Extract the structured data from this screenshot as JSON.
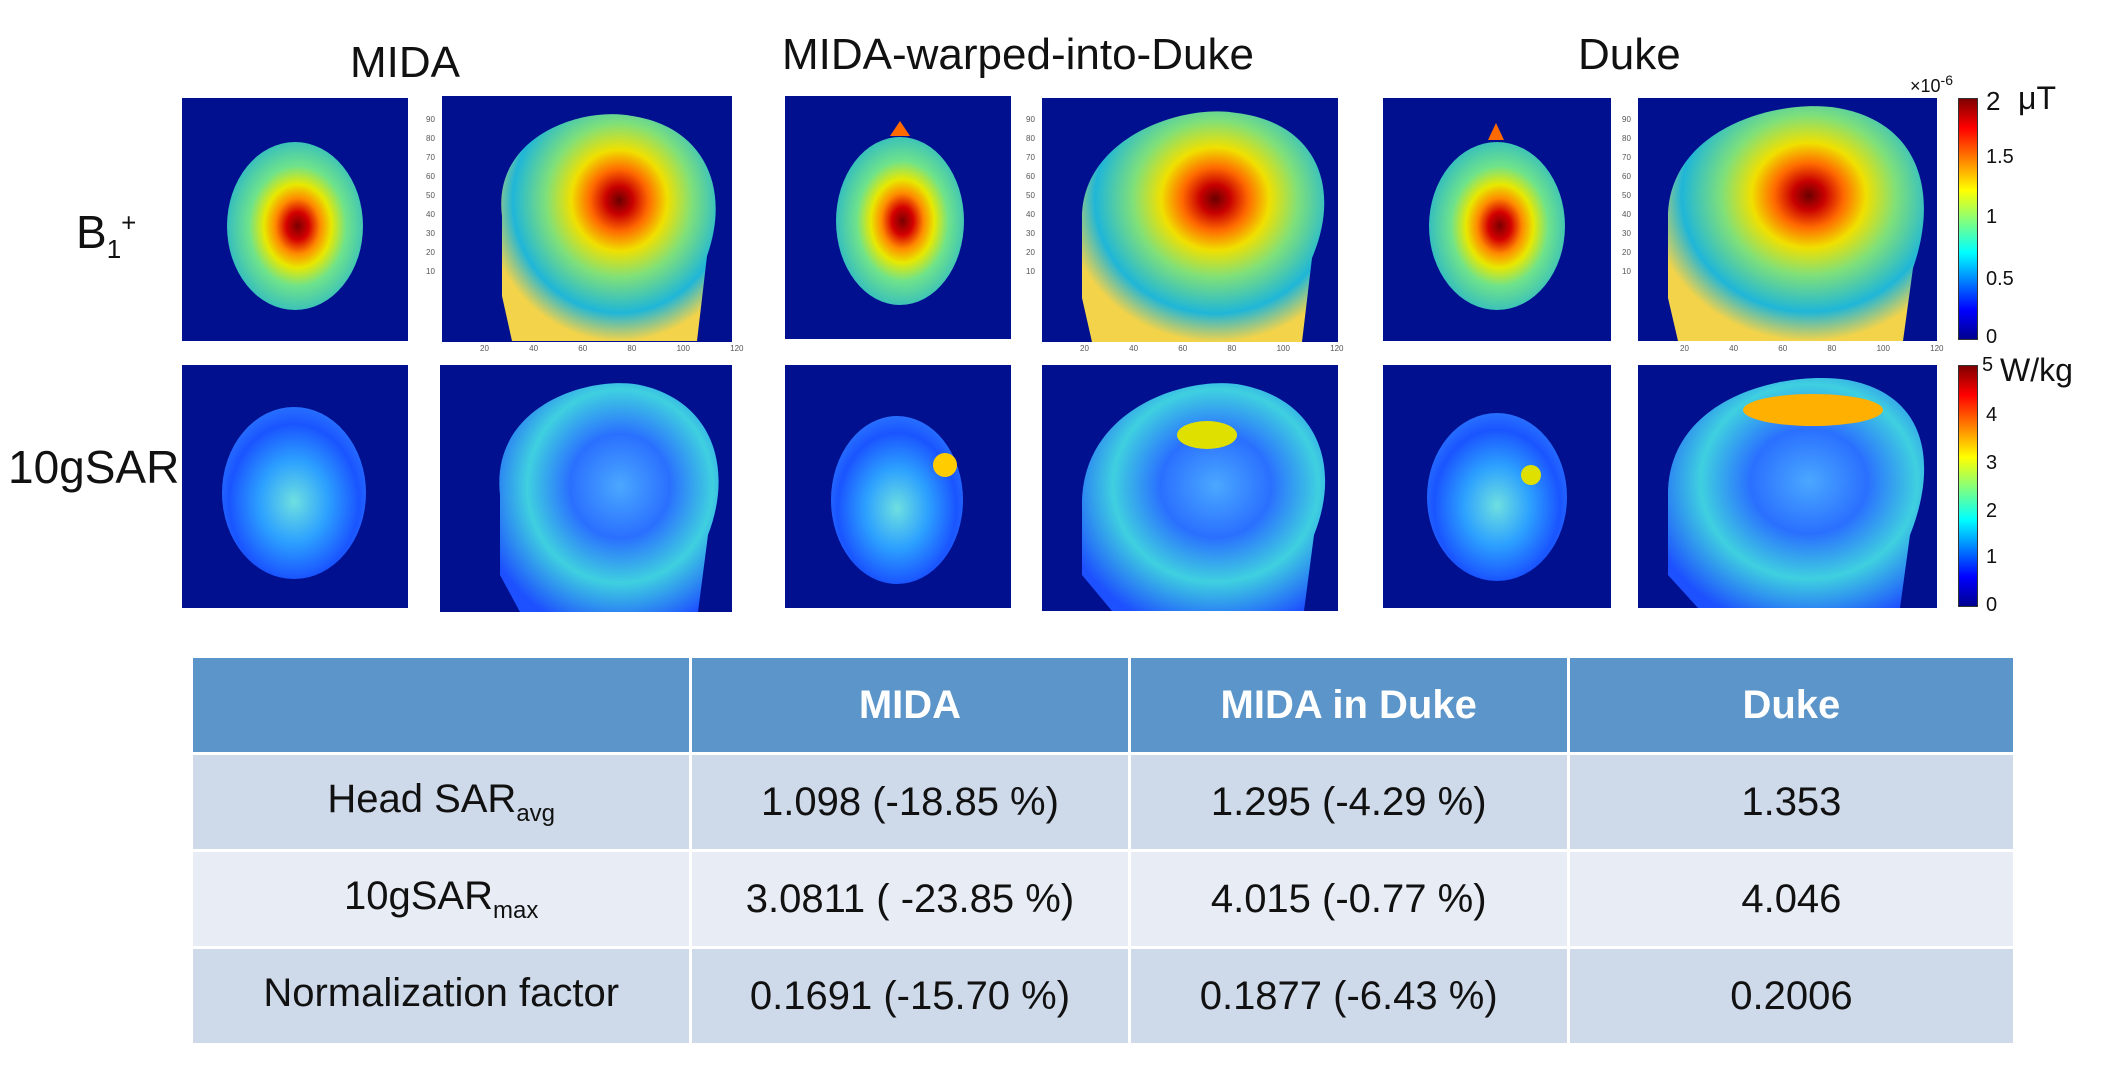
{
  "columns": {
    "mida": "MIDA",
    "warped": "MIDA-warped-into-Duke",
    "duke": "Duke"
  },
  "rows": {
    "b1_base": "B",
    "b1_sub": "1",
    "b1_sup": "+",
    "sar": "10gSAR"
  },
  "colorbar_b1": {
    "exponent": "×10",
    "exponent_power": "-6",
    "unit": "μT",
    "ticks": [
      "2",
      "1.5",
      "1",
      "0.5",
      "0"
    ]
  },
  "colorbar_sar": {
    "unit": "W/kg",
    "ticks": [
      "5",
      "4",
      "3",
      "2",
      "1",
      "0"
    ]
  },
  "axis_ticks_y": [
    "90",
    "80",
    "70",
    "60",
    "50",
    "40",
    "30",
    "20",
    "10"
  ],
  "axis_ticks_x": [
    "20",
    "40",
    "60",
    "80",
    "100",
    "120"
  ],
  "table": {
    "headers": [
      "",
      "MIDA",
      "MIDA in Duke",
      "Duke"
    ],
    "rows": [
      {
        "label_base": "Head SAR",
        "label_sub": "avg",
        "values": [
          "1.098 (-18.85 %)",
          "1.295 (-4.29 %)",
          "1.353"
        ]
      },
      {
        "label_base": "10gSAR",
        "label_sub": "max",
        "values": [
          "3.0811 ( -23.85 %)",
          "4.015 (-0.77 %)",
          "4.046"
        ]
      },
      {
        "label_base": "Normalization factor",
        "label_sub": "",
        "values": [
          "0.1691 (-15.70 %)",
          "0.1877 (-6.43 %)",
          "0.2006"
        ]
      }
    ]
  },
  "colors": {
    "background_map": "#00108f",
    "table_header": "#5b95c9",
    "table_row_dark": "#ced9ea",
    "table_row_light": "#e8edf5"
  }
}
